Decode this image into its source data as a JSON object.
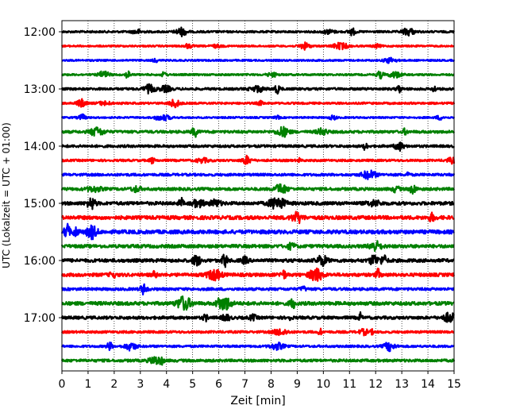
{
  "chart_data": {
    "type": "line",
    "xlabel": "Zeit  [min]",
    "ylabel": "UTC (Lokalzeit = UTC + 01:00)",
    "xlim": [
      0,
      15
    ],
    "x_ticks": [
      "0",
      "1",
      "2",
      "3",
      "4",
      "5",
      "6",
      "7",
      "8",
      "9",
      "10",
      "11",
      "12",
      "13",
      "14",
      "15"
    ],
    "y_ticks": [
      "12:00",
      "13:00",
      "14:00",
      "15:00",
      "16:00",
      "17:00"
    ],
    "grid": "vertical-dotted",
    "trace_interval_min": 15,
    "start_time": "12:00",
    "traces": [
      {
        "start": "12:00",
        "color": "#000000",
        "amp": 1.2
      },
      {
        "start": "12:15",
        "color": "#ff0000",
        "amp": 1.0
      },
      {
        "start": "12:30",
        "color": "#0000ff",
        "amp": 1.0
      },
      {
        "start": "12:45",
        "color": "#008000",
        "amp": 1.1
      },
      {
        "start": "13:00",
        "color": "#000000",
        "amp": 1.4
      },
      {
        "start": "13:15",
        "color": "#ff0000",
        "amp": 1.2
      },
      {
        "start": "13:30",
        "color": "#0000ff",
        "amp": 1.0
      },
      {
        "start": "13:45",
        "color": "#008000",
        "amp": 1.6
      },
      {
        "start": "14:00",
        "color": "#000000",
        "amp": 1.5
      },
      {
        "start": "14:15",
        "color": "#ff0000",
        "amp": 1.3
      },
      {
        "start": "14:30",
        "color": "#0000ff",
        "amp": 1.5
      },
      {
        "start": "14:45",
        "color": "#008000",
        "amp": 1.7
      },
      {
        "start": "15:00",
        "color": "#000000",
        "amp": 2.0
      },
      {
        "start": "15:15",
        "color": "#ff0000",
        "amp": 2.2
      },
      {
        "start": "15:30",
        "color": "#0000ff",
        "amp": 2.3
      },
      {
        "start": "15:45",
        "color": "#008000",
        "amp": 2.0
      },
      {
        "start": "16:00",
        "color": "#000000",
        "amp": 2.0
      },
      {
        "start": "16:15",
        "color": "#ff0000",
        "amp": 2.0
      },
      {
        "start": "16:30",
        "color": "#0000ff",
        "amp": 1.6
      },
      {
        "start": "16:45",
        "color": "#008000",
        "amp": 2.1
      },
      {
        "start": "17:00",
        "color": "#000000",
        "amp": 1.8
      },
      {
        "start": "17:15",
        "color": "#ff0000",
        "amp": 1.4
      },
      {
        "start": "17:30",
        "color": "#0000ff",
        "amp": 1.3
      },
      {
        "start": "17:45",
        "color": "#008000",
        "amp": 1.6
      }
    ]
  }
}
